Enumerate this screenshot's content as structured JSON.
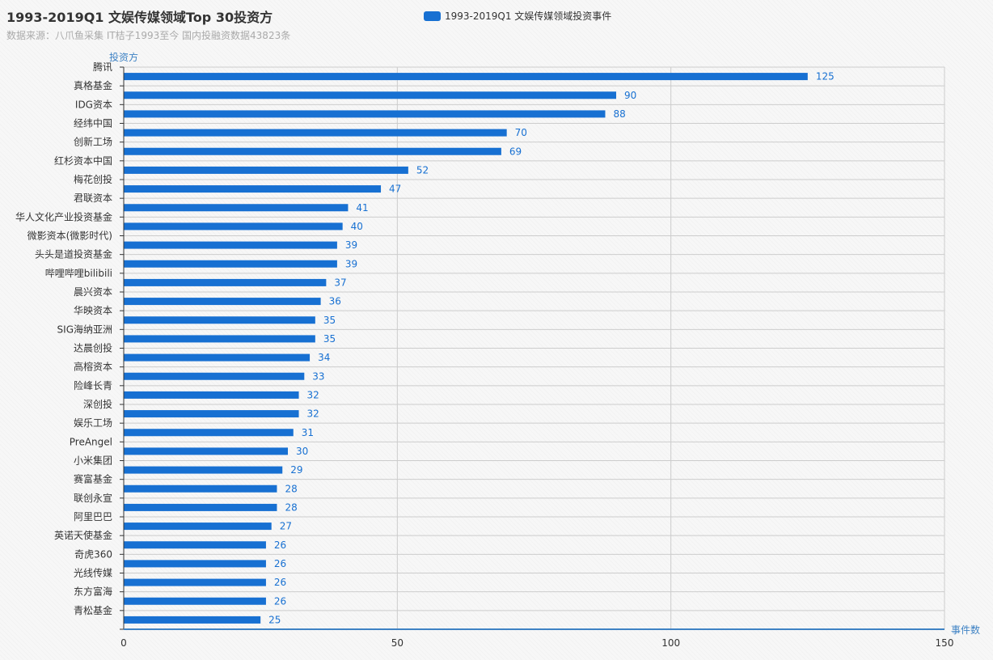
{
  "chart_data": {
    "type": "bar",
    "orientation": "horizontal",
    "title": "1993-2019Q1 文娱传媒领域Top 30投资方",
    "subtitle": "数据来源：八爪鱼采集 IT桔子1993至今 国内投融资数据43823条",
    "ylabel": "投资方",
    "xlabel": "事件数",
    "xlim": [
      0,
      150
    ],
    "xticks": [
      0,
      50,
      100,
      150
    ],
    "grid": true,
    "legend_position": "top-center",
    "bar_color": "#1770d2",
    "axis_color": "#3e82c4",
    "series": [
      {
        "name": "1993-2019Q1 文娱传媒领域投资事件",
        "values": [
          125,
          90,
          88,
          70,
          69,
          52,
          47,
          41,
          40,
          39,
          39,
          37,
          36,
          35,
          35,
          34,
          33,
          32,
          32,
          31,
          30,
          29,
          28,
          28,
          27,
          26,
          26,
          26,
          26,
          25
        ]
      }
    ],
    "categories": [
      "腾讯",
      "真格基金",
      "IDG资本",
      "经纬中国",
      "创新工场",
      "红杉资本中国",
      "梅花创投",
      "君联资本",
      "华人文化产业投资基金",
      "微影资本(微影时代)",
      "头头是道投资基金",
      "哔哩哔哩bilibili",
      "晨兴资本",
      "华映资本",
      "SIG海纳亚洲",
      "达晨创投",
      "高榕资本",
      "险峰长青",
      "深创投",
      "娱乐工场",
      "PreAngel",
      "小米集团",
      "赛富基金",
      "联创永宣",
      "阿里巴巴",
      "英诺天使基金",
      "奇虎360",
      "光线传媒",
      "东方富海",
      "青松基金"
    ]
  }
}
